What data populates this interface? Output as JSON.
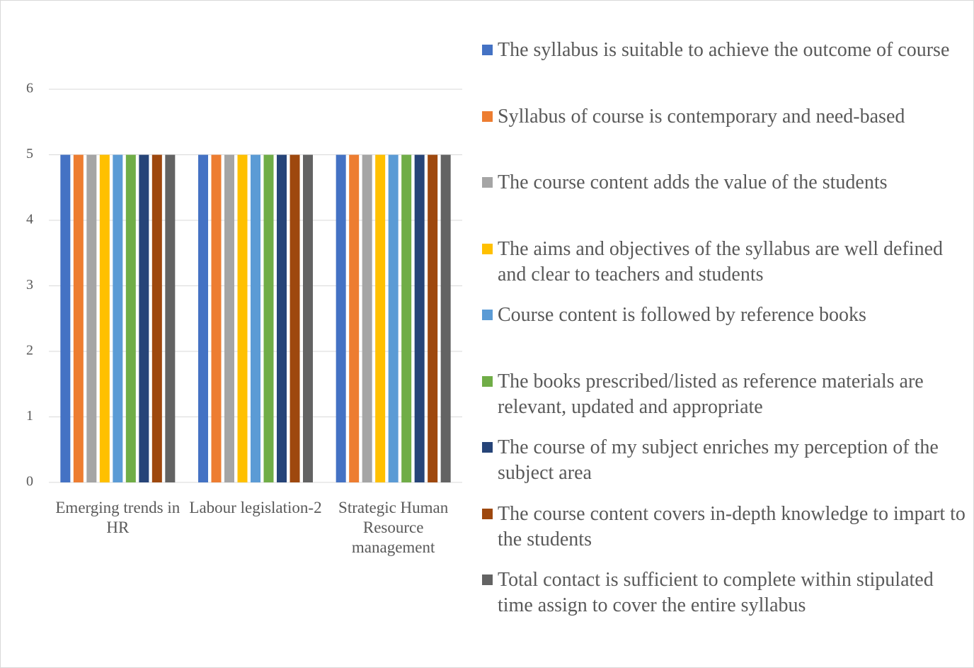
{
  "chart_data": {
    "type": "bar",
    "categories": [
      "Emerging trends in HR",
      "Labour legislation-2",
      "Strategic Human Resource management"
    ],
    "series": [
      {
        "name": "The syllabus is suitable to achieve the outcome of course",
        "color": "#4472c4",
        "values": [
          5,
          5,
          5
        ]
      },
      {
        "name": "Syllabus of course is contemporary and need-based",
        "color": "#ed7d31",
        "values": [
          5,
          5,
          5
        ]
      },
      {
        "name": "The course content adds the value of the students",
        "color": "#a5a5a5",
        "values": [
          5,
          5,
          5
        ]
      },
      {
        "name": "The aims and objectives of the syllabus are well defined and clear to teachers and students",
        "color": "#ffc000",
        "values": [
          5,
          5,
          5
        ]
      },
      {
        "name": "Course content is followed by reference books",
        "color": "#5b9bd5",
        "values": [
          5,
          5,
          5
        ]
      },
      {
        "name": "The books prescribed/listed as reference materials are relevant, updated and appropriate",
        "color": "#70ad47",
        "values": [
          5,
          5,
          5
        ]
      },
      {
        "name": "The course of my subject enriches my perception of the subject area",
        "color": "#264478",
        "values": [
          5,
          5,
          5
        ]
      },
      {
        "name": "The course content covers in-depth knowledge to impart to the students",
        "color": "#9e480e",
        "values": [
          5,
          5,
          5
        ]
      },
      {
        "name": "Total contact is sufficient to complete within stipulated time assign to cover the entire syllabus",
        "color": "#636363",
        "values": [
          5,
          5,
          5
        ]
      }
    ],
    "ylim": [
      0,
      6
    ],
    "yticks": [
      0,
      1,
      2,
      3,
      4,
      5,
      6
    ],
    "grid": true,
    "legend": "right"
  }
}
